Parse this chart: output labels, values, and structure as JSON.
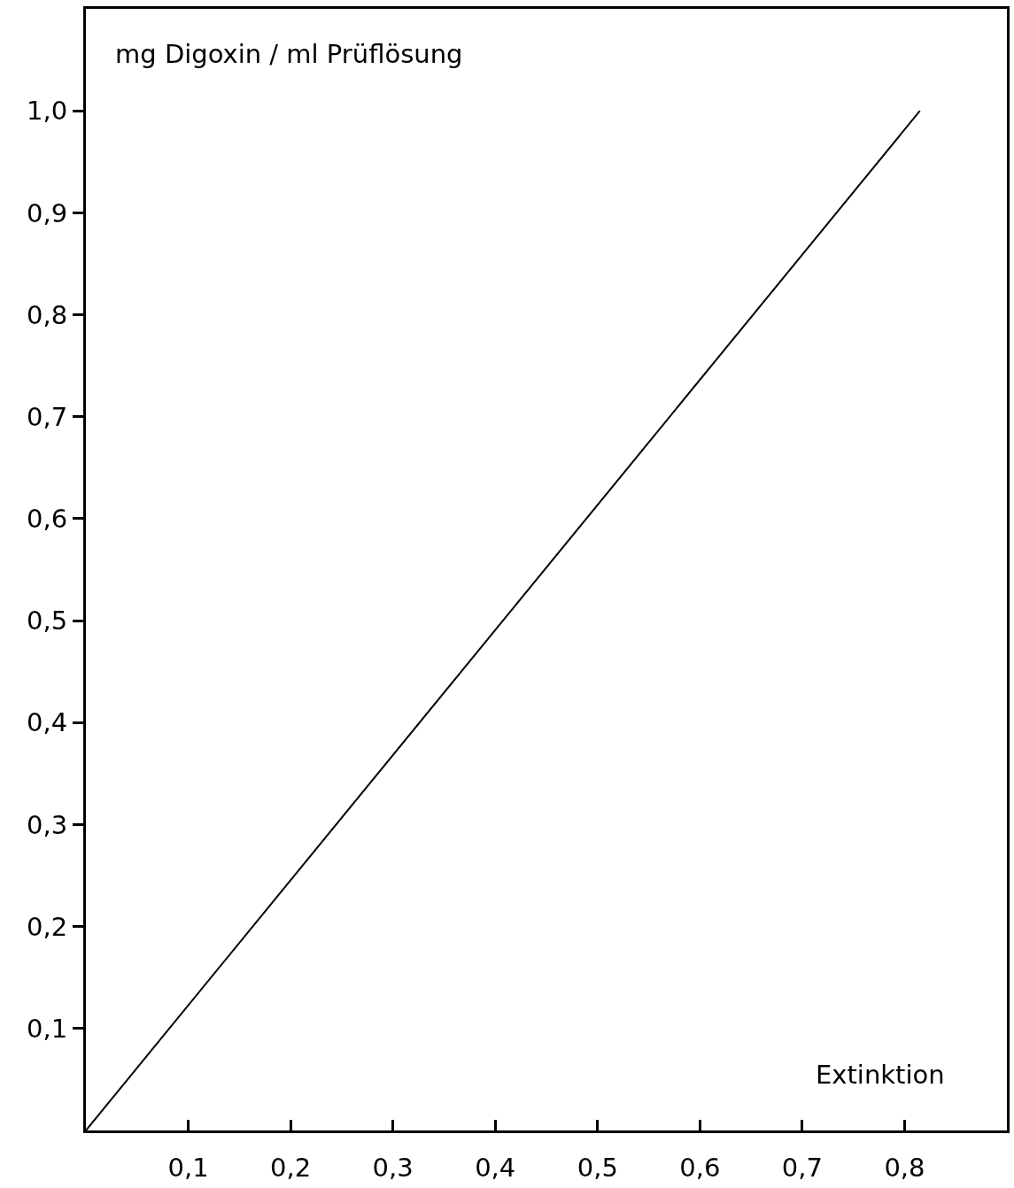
{
  "chart_data": {
    "type": "line",
    "xlabel": "Extinktion",
    "ylabel": "mg Digoxin / ml Prüflösung",
    "x": [
      0,
      0.815
    ],
    "series": [
      {
        "color": "#000000",
        "values": [
          0,
          1.0
        ]
      }
    ],
    "xlim": [
      0,
      0.9
    ],
    "ylim": [
      0,
      1.1
    ],
    "xticks": [
      {
        "value": 0.1,
        "label": "0,1"
      },
      {
        "value": 0.2,
        "label": "0,2"
      },
      {
        "value": 0.3,
        "label": "0,3"
      },
      {
        "value": 0.4,
        "label": "0,4"
      },
      {
        "value": 0.5,
        "label": "0,5"
      },
      {
        "value": 0.6,
        "label": "0,6"
      },
      {
        "value": 0.7,
        "label": "0,7"
      },
      {
        "value": 0.8,
        "label": "0,8"
      }
    ],
    "yticks": [
      {
        "value": 0.1,
        "label": "0,1"
      },
      {
        "value": 0.2,
        "label": "0,2"
      },
      {
        "value": 0.3,
        "label": "0,3"
      },
      {
        "value": 0.4,
        "label": "0,4"
      },
      {
        "value": 0.5,
        "label": "0,5"
      },
      {
        "value": 0.6,
        "label": "0,6"
      },
      {
        "value": 0.7,
        "label": "0,7"
      },
      {
        "value": 0.8,
        "label": "0,8"
      },
      {
        "value": 0.9,
        "label": "0,9"
      },
      {
        "value": 1.0,
        "label": "1,0"
      }
    ],
    "marker": "none",
    "line_style": "solid"
  }
}
